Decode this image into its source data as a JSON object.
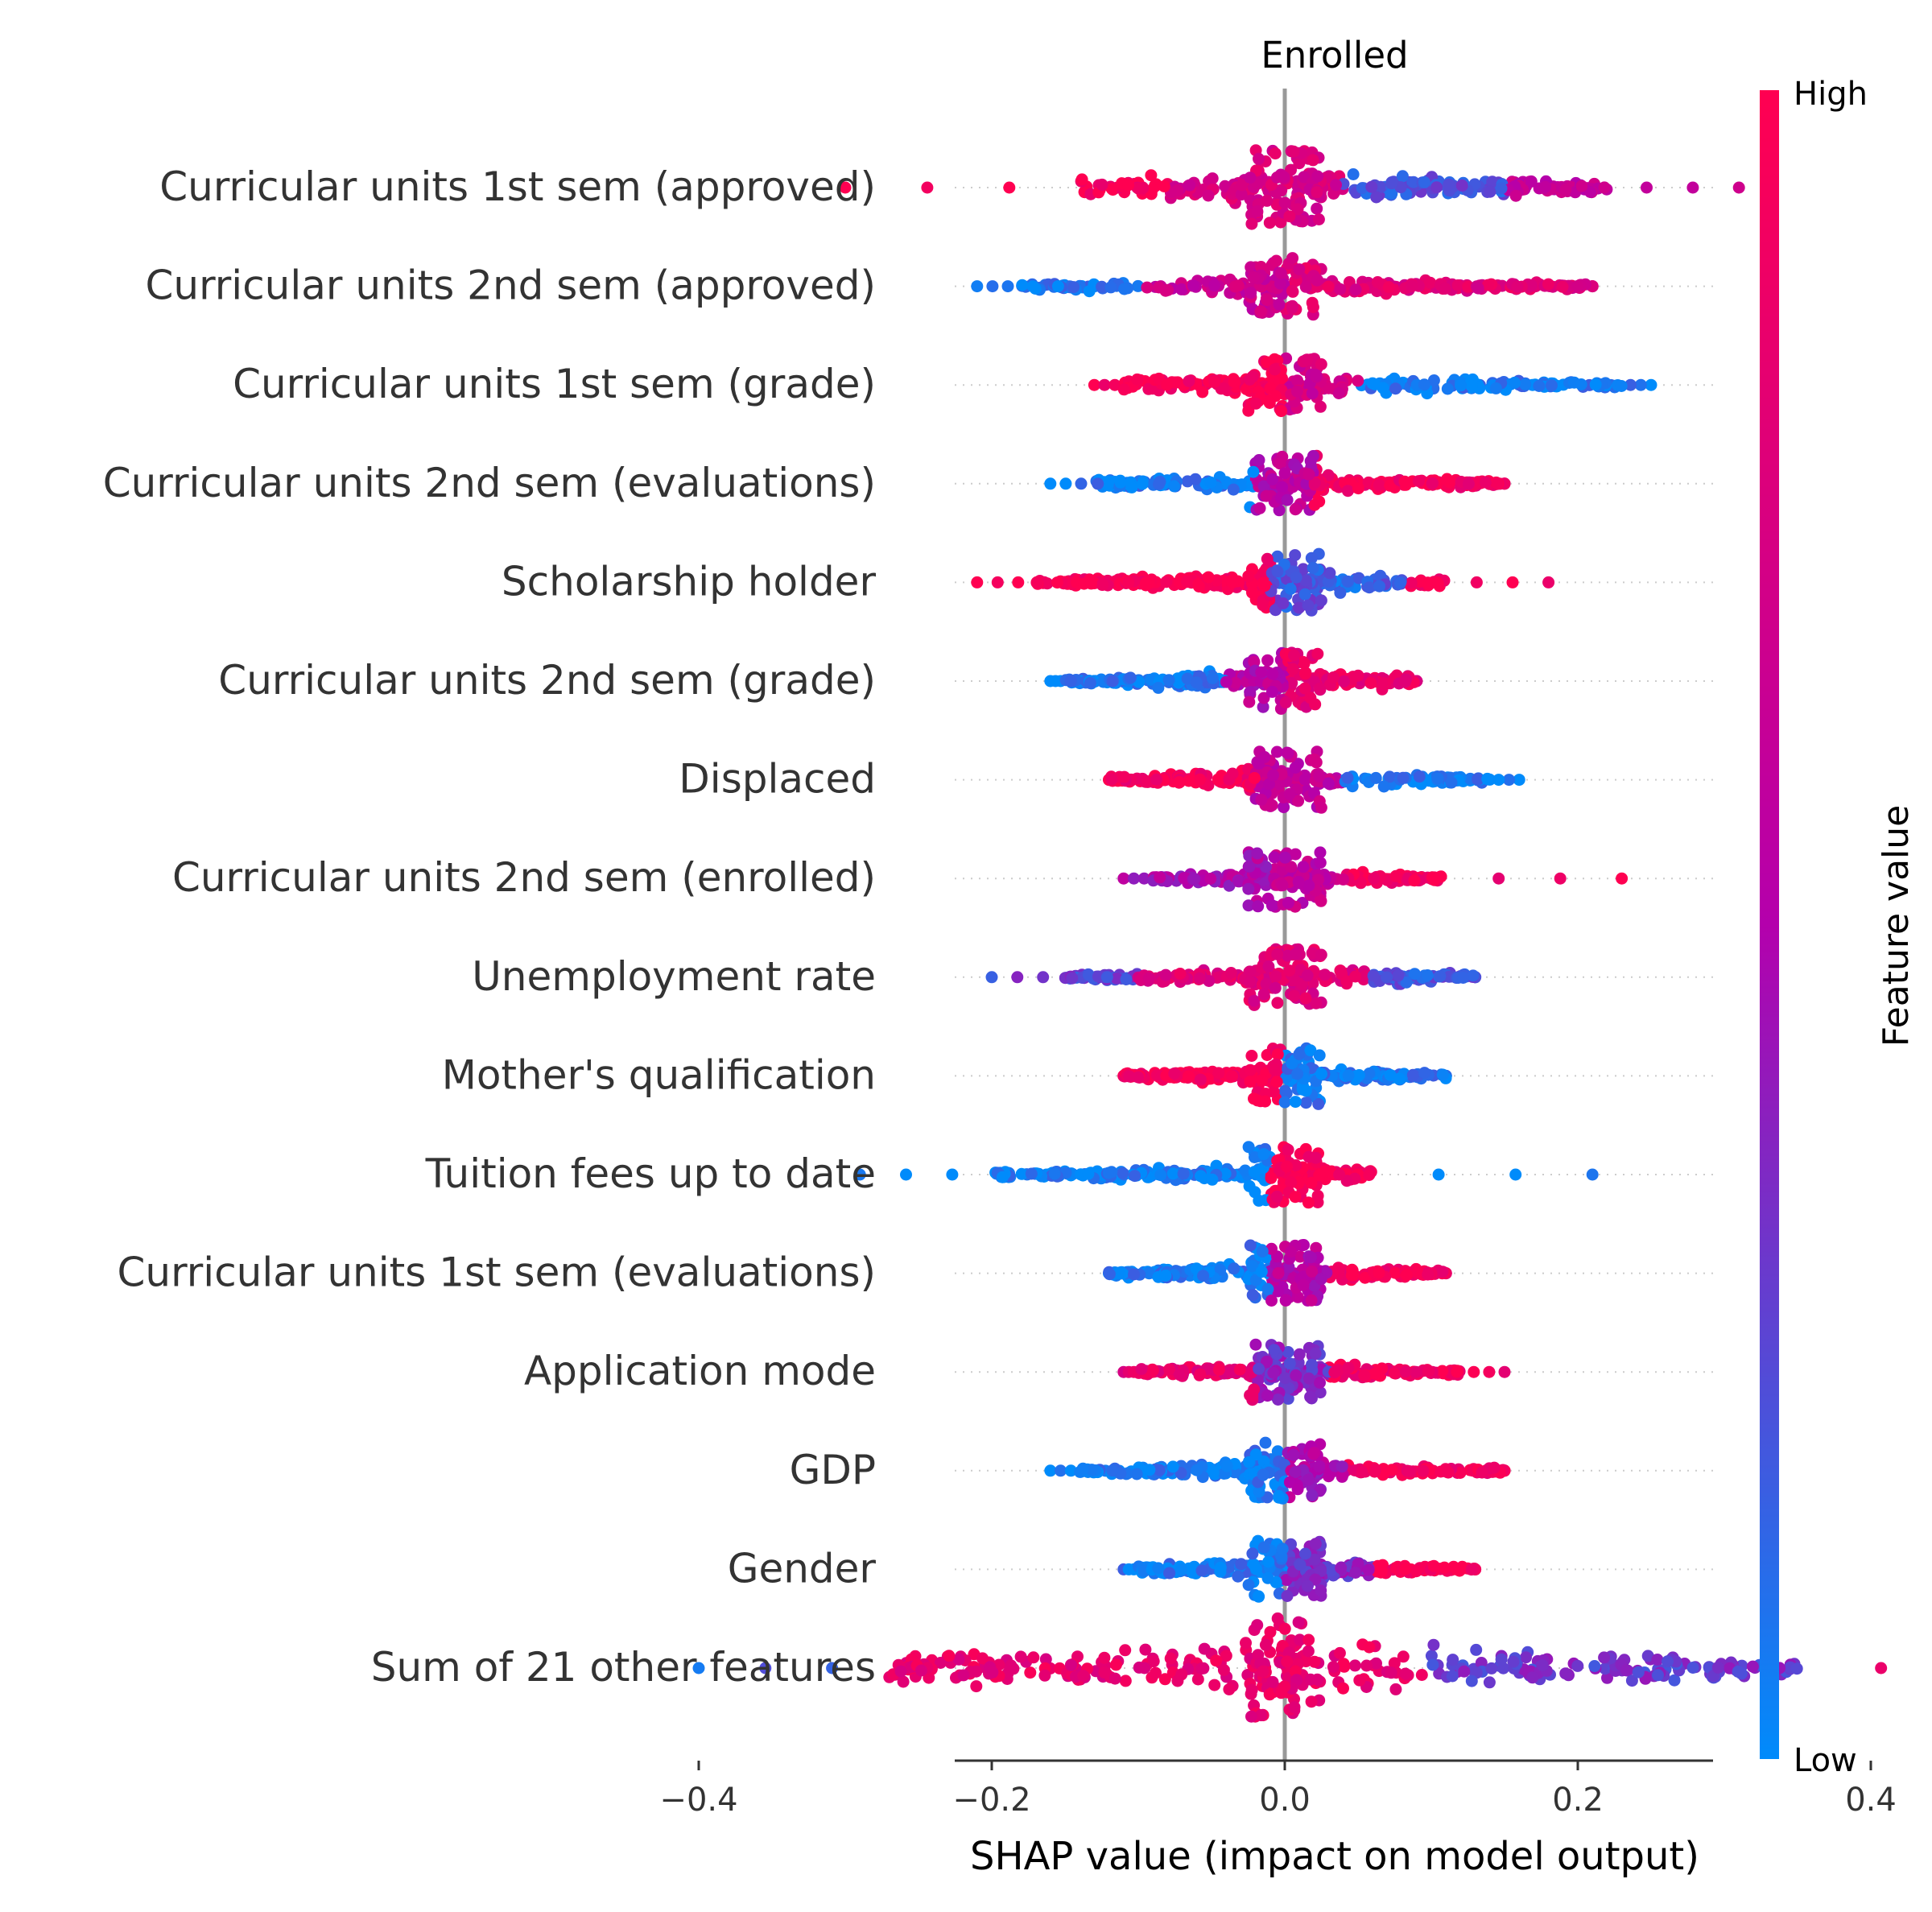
{
  "chart_data": {
    "type": "scatter",
    "subtype": "shap-beeswarm",
    "title": "Enrolled",
    "xlabel": "SHAP value (impact on model output)",
    "ylabel": "",
    "xlim": [
      -0.45,
      0.59
    ],
    "xticks": [
      -0.4,
      -0.2,
      0.0,
      0.2,
      0.4
    ],
    "xtick_labels": [
      "−0.4",
      "−0.2",
      "0.0",
      "0.2",
      "0.4"
    ],
    "grid": "horizontal dotted row lines",
    "zero_line": true,
    "colorbar": {
      "label": "Feature value",
      "high_label": "High",
      "low_label": "Low",
      "high_color": "#ff0051",
      "mid_color": "#b400ac",
      "low_color": "#008bfb",
      "placement": "right"
    },
    "features": [
      {
        "name": "Curricular units 1st sem (approved)",
        "min": -0.3,
        "max": 0.31,
        "core": [
          -0.14,
          0.22
        ],
        "width": 24,
        "segments": [
          [
            -0.3,
            -0.08,
            0.97
          ],
          [
            -0.08,
            0.04,
            0.75
          ],
          [
            0.04,
            0.15,
            0.2
          ],
          [
            0.15,
            0.24,
            0.6
          ],
          [
            0.24,
            0.31,
            0.55
          ]
        ]
      },
      {
        "name": "Curricular units 2nd sem (approved)",
        "min": -0.21,
        "max": 0.21,
        "core": [
          -0.18,
          0.21
        ],
        "width": 14,
        "segments": [
          [
            -0.21,
            -0.1,
            0.05
          ],
          [
            -0.1,
            0.0,
            0.65
          ],
          [
            0.0,
            0.21,
            0.8
          ]
        ]
      },
      {
        "name": "Curricular units 1st sem (grade)",
        "min": -0.13,
        "max": 0.25,
        "core": [
          -0.11,
          0.23
        ],
        "width": 14,
        "segments": [
          [
            -0.13,
            0.0,
            0.97
          ],
          [
            0.0,
            0.05,
            0.7
          ],
          [
            0.05,
            0.25,
            0.05
          ]
        ]
      },
      {
        "name": "Curricular units 2nd sem (evaluations)",
        "min": -0.16,
        "max": 0.15,
        "core": [
          -0.13,
          0.15
        ],
        "width": 14,
        "segments": [
          [
            -0.16,
            -0.02,
            0.05
          ],
          [
            -0.02,
            0.02,
            0.55
          ],
          [
            0.02,
            0.15,
            0.93
          ]
        ]
      },
      {
        "name": "Scholarship holder",
        "min": -0.21,
        "max": 0.18,
        "core": [
          -0.17,
          0.11
        ],
        "width": 14,
        "segments": [
          [
            -0.21,
            -0.01,
            0.97
          ],
          [
            -0.01,
            0.03,
            0.2
          ],
          [
            0.03,
            0.08,
            0.15
          ],
          [
            0.08,
            0.18,
            0.95
          ]
        ]
      },
      {
        "name": "Curricular units 2nd sem (grade)",
        "min": -0.16,
        "max": 0.09,
        "core": [
          -0.15,
          0.09
        ],
        "width": 14,
        "segments": [
          [
            -0.16,
            -0.04,
            0.05
          ],
          [
            -0.04,
            0.0,
            0.55
          ],
          [
            0.0,
            0.09,
            0.85
          ]
        ]
      },
      {
        "name": "Displaced",
        "min": -0.12,
        "max": 0.16,
        "core": [
          -0.12,
          0.14
        ],
        "width": 14,
        "segments": [
          [
            -0.12,
            -0.02,
            0.93
          ],
          [
            -0.02,
            0.04,
            0.6
          ],
          [
            0.04,
            0.16,
            0.05
          ]
        ]
      },
      {
        "name": "Curricular units 2nd sem (enrolled)",
        "min": -0.11,
        "max": 0.23,
        "core": [
          -0.09,
          0.11
        ],
        "width": 14,
        "segments": [
          [
            -0.11,
            -0.01,
            0.5
          ],
          [
            -0.01,
            0.04,
            0.6
          ],
          [
            0.04,
            0.23,
            0.95
          ]
        ]
      },
      {
        "name": "Unemployment rate",
        "min": -0.2,
        "max": 0.13,
        "core": [
          -0.15,
          0.13
        ],
        "width": 14,
        "segments": [
          [
            -0.2,
            -0.1,
            0.25
          ],
          [
            -0.1,
            0.06,
            0.8
          ],
          [
            0.06,
            0.13,
            0.2
          ]
        ]
      },
      {
        "name": "Mother's qualification",
        "min": -0.11,
        "max": 0.11,
        "core": [
          -0.11,
          0.11
        ],
        "width": 14,
        "segments": [
          [
            -0.11,
            0.0,
            0.97
          ],
          [
            0.0,
            0.11,
            0.05
          ]
        ]
      },
      {
        "name": "Tuition fees up to date",
        "min": -0.29,
        "max": 0.21,
        "core": [
          -0.2,
          0.06
        ],
        "width": 14,
        "segments": [
          [
            -0.29,
            -0.01,
            0.03
          ],
          [
            -0.01,
            0.06,
            0.97
          ],
          [
            0.06,
            0.21,
            0.03
          ]
        ]
      },
      {
        "name": "Curricular units 1st sem (evaluations)",
        "min": -0.12,
        "max": 0.11,
        "core": [
          -0.12,
          0.11
        ],
        "width": 14,
        "segments": [
          [
            -0.12,
            -0.01,
            0.05
          ],
          [
            -0.01,
            0.03,
            0.55
          ],
          [
            0.03,
            0.11,
            0.93
          ]
        ]
      },
      {
        "name": "Application mode",
        "min": -0.11,
        "max": 0.15,
        "core": [
          -0.1,
          0.12
        ],
        "width": 14,
        "segments": [
          [
            -0.11,
            -0.02,
            0.85
          ],
          [
            -0.02,
            0.03,
            0.35
          ],
          [
            0.03,
            0.15,
            0.93
          ]
        ]
      },
      {
        "name": "GDP",
        "min": -0.16,
        "max": 0.15,
        "core": [
          -0.14,
          0.15
        ],
        "width": 14,
        "segments": [
          [
            -0.16,
            0.0,
            0.05
          ],
          [
            0.0,
            0.04,
            0.5
          ],
          [
            0.04,
            0.15,
            0.93
          ]
        ]
      },
      {
        "name": "Gender",
        "min": -0.11,
        "max": 0.13,
        "core": [
          -0.1,
          0.13
        ],
        "width": 14,
        "segments": [
          [
            -0.11,
            0.0,
            0.05
          ],
          [
            0.0,
            0.06,
            0.35
          ],
          [
            0.06,
            0.13,
            0.97
          ]
        ]
      },
      {
        "name": "Sum of 21 other features",
        "min": -0.4,
        "max": 0.54,
        "core": [
          -0.27,
          0.35
        ],
        "width": 40,
        "segments": [
          [
            -0.4,
            -0.29,
            0.1
          ],
          [
            -0.29,
            0.1,
            0.85
          ],
          [
            0.1,
            0.35,
            0.3
          ],
          [
            0.35,
            0.54,
            0.92
          ]
        ]
      }
    ]
  }
}
